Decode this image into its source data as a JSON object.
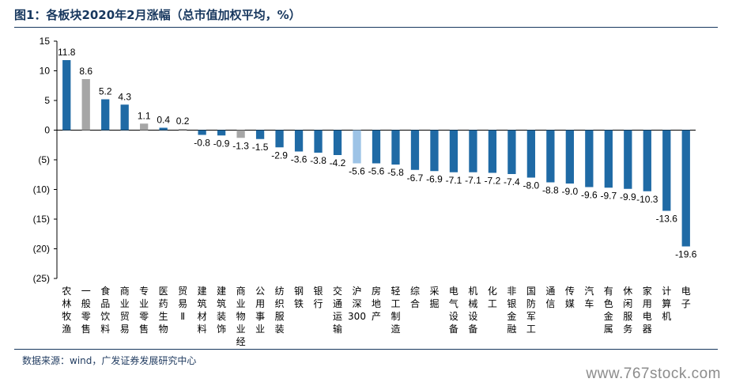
{
  "header": {
    "title": "图1：各板块2020年2月涨幅（总市值加权平均，%）"
  },
  "footer": {
    "source": "数据来源：wind，广发证券发展研究中心",
    "watermark": "www.767stock.com"
  },
  "colors": {
    "primary": "#1f6aa5",
    "gray": "#a6a6a6",
    "light_blue": "#9dc3e6",
    "title": "#17375e"
  },
  "chart_data": {
    "type": "bar",
    "title": "",
    "ylim": [
      -25,
      15
    ],
    "yticks": [
      15,
      10,
      5,
      0,
      -5,
      -10,
      -15,
      -20,
      -25
    ],
    "ytick_labels": [
      "15",
      "10",
      "5",
      "0",
      "(5)",
      "(10)",
      "(15)",
      "(20)",
      "(25)"
    ],
    "categories": [
      "农林牧渔",
      "一般零售",
      "食品饮料",
      "商业贸易",
      "专业零售",
      "医药生物",
      "贸易Ⅱ",
      "建筑材料",
      "建筑装饰",
      "商业物业经营",
      "公用事业",
      "纺织服装",
      "钢铁",
      "银行",
      "交通运输",
      "沪深300",
      "房地产",
      "轻工制造",
      "综合",
      "采掘",
      "电气设备",
      "机械设备",
      "化工",
      "非银金融",
      "国防军工",
      "通信",
      "传媒",
      "汽车",
      "有色金属",
      "休闲服务",
      "家用电器",
      "计算机",
      "电子"
    ],
    "values": [
      11.8,
      8.6,
      5.2,
      4.3,
      1.1,
      0.4,
      0.2,
      -0.8,
      -0.9,
      -1.3,
      -1.5,
      -2.9,
      -3.6,
      -3.8,
      -4.2,
      -5.6,
      -5.6,
      -5.8,
      -6.7,
      -6.9,
      -7.1,
      -7.1,
      -7.2,
      -7.4,
      -8.0,
      -8.8,
      -9.0,
      -9.6,
      -9.7,
      -9.9,
      -10.3,
      -13.6,
      -19.6
    ],
    "data_labels": [
      "11.8",
      "8.6",
      "5.2",
      "4.3",
      "1.1",
      "0.4",
      "0.2",
      "-0.8",
      "-0.9",
      "-1.3",
      "-1.5",
      "-2.9",
      "-3.6",
      "-3.8",
      "-4.2",
      "-5.6",
      "-5.6",
      "-5.8",
      "-6.7",
      "-6.9",
      "-7.1",
      "-7.1",
      "-7.2",
      "-7.4",
      "-8.0",
      "-8.8",
      "-9.0",
      "-9.6",
      "-9.7",
      "-9.9",
      "-10.3",
      "-13.6",
      "-19.6"
    ],
    "bar_colors": [
      "primary",
      "gray",
      "primary",
      "primary",
      "gray",
      "primary",
      "gray",
      "primary",
      "primary",
      "gray",
      "primary",
      "primary",
      "primary",
      "primary",
      "primary",
      "light_blue",
      "primary",
      "primary",
      "primary",
      "primary",
      "primary",
      "primary",
      "primary",
      "primary",
      "primary",
      "primary",
      "primary",
      "primary",
      "primary",
      "primary",
      "primary",
      "primary",
      "primary"
    ],
    "grid": false,
    "legend": "none"
  }
}
